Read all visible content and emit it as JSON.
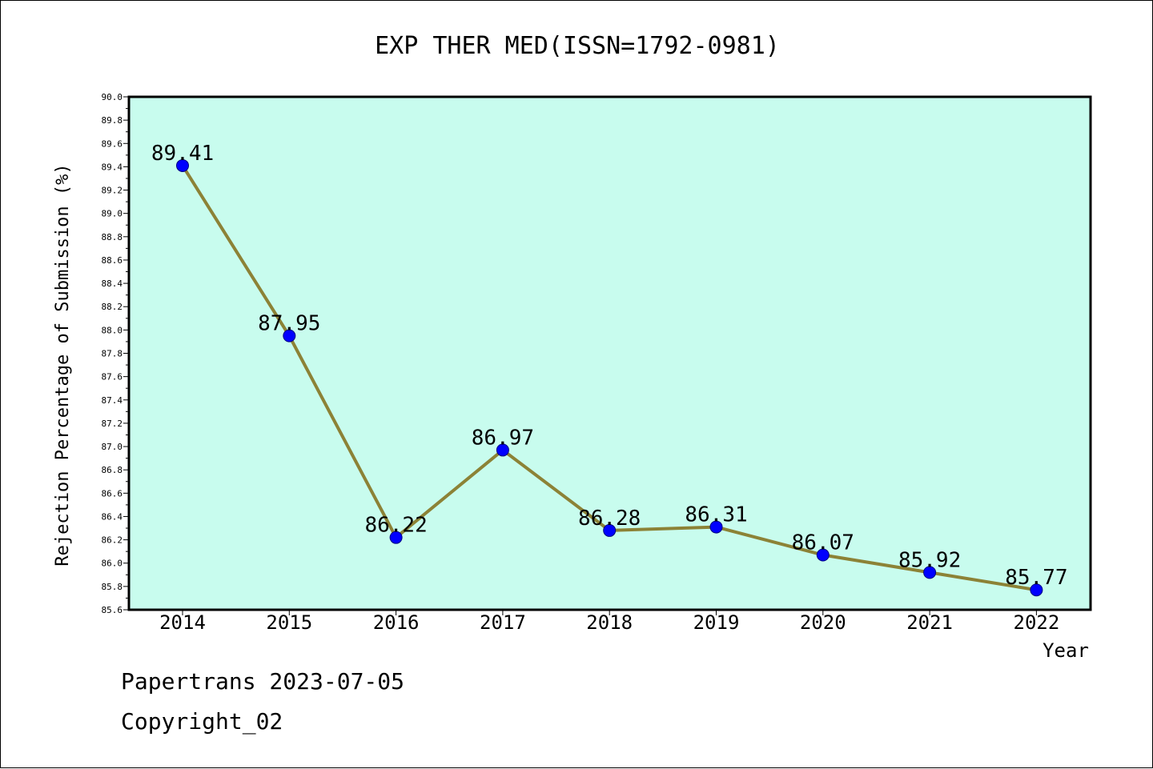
{
  "chart_data": {
    "type": "line",
    "title": "EXP THER MED(ISSN=1792-0981)",
    "xlabel": "Year",
    "ylabel": "Rejection Percentage of Submission (%)",
    "categories": [
      "2014",
      "2015",
      "2016",
      "2017",
      "2018",
      "2019",
      "2020",
      "2021",
      "2022"
    ],
    "series": [
      {
        "values": [
          89.41,
          87.95,
          86.22,
          86.97,
          86.28,
          86.31,
          86.07,
          85.92,
          85.77
        ],
        "data_labels": [
          "89.41",
          "87.95",
          "86.22",
          "86.97",
          "86.28",
          "86.31",
          "86.07",
          "85.92",
          "85.77"
        ]
      }
    ],
    "ylim": [
      85.6,
      90.0
    ],
    "y_ticks": [
      "85.6",
      "85.8",
      "86.0",
      "86.2",
      "86.4",
      "86.6",
      "86.8",
      "87.0",
      "87.2",
      "87.4",
      "87.6",
      "87.8",
      "88.0",
      "88.2",
      "88.4",
      "88.6",
      "88.8",
      "89.0",
      "89.2",
      "89.4",
      "89.6",
      "89.8",
      "90.0"
    ],
    "grid": false,
    "legend": "none",
    "colors": {
      "plot_background": "#c8fcee",
      "line": "#8c8236",
      "marker": "#0000ff",
      "axis": "#000000"
    }
  },
  "footer": {
    "line1": "Papertrans 2023-07-05",
    "line2": "Copyright_02"
  }
}
